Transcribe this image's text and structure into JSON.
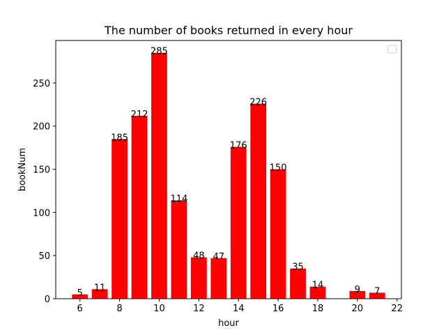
{
  "chart_data": {
    "type": "bar",
    "title": "The number of books returned in every hour",
    "xlabel": "hour",
    "ylabel": "bookNum",
    "x": [
      6,
      7,
      8,
      9,
      10,
      11,
      12,
      13,
      14,
      15,
      16,
      17,
      18,
      20,
      21
    ],
    "values": [
      5,
      11,
      185,
      212,
      285,
      114,
      48,
      47,
      176,
      226,
      150,
      35,
      14,
      9,
      7
    ],
    "xlim": [
      4.78,
      22.22
    ],
    "ylim": [
      0,
      299.25
    ],
    "xticks": [
      "6",
      "8",
      "10",
      "12",
      "14",
      "16",
      "18",
      "20",
      "22"
    ],
    "yticks": [
      "0",
      "50",
      "100",
      "150",
      "200",
      "250"
    ],
    "bar_color": "#ff0000",
    "grid": false,
    "legend": "upper-right empty box"
  }
}
